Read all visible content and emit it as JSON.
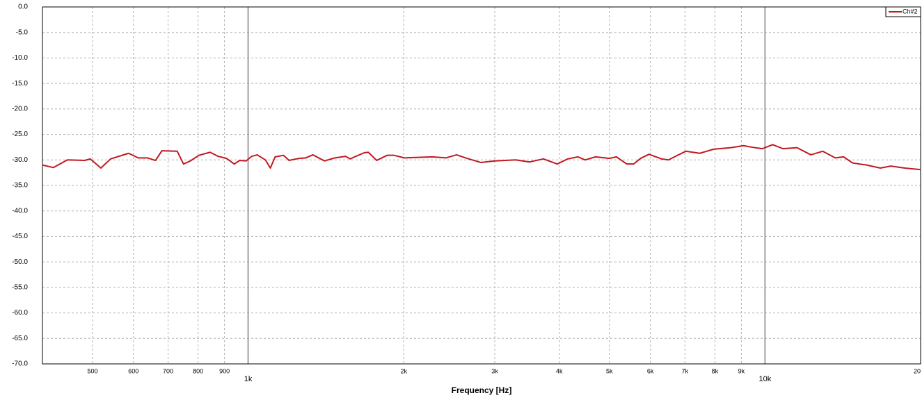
{
  "chart_data": {
    "type": "line",
    "xlabel": "Frequency [Hz]",
    "log_x": true,
    "grid": true,
    "legend": "upper right",
    "xlim": [
      400,
      20000
    ],
    "ylim": [
      -70,
      0
    ],
    "xticks": [
      500,
      600,
      700,
      800,
      900,
      {
        "value": 1000,
        "label": "1k"
      },
      {
        "value": 2000,
        "label": "2k"
      },
      {
        "value": 3000,
        "label": "3k"
      },
      {
        "value": 4000,
        "label": "4k"
      },
      {
        "value": 5000,
        "label": "5k"
      },
      {
        "value": 6000,
        "label": "6k"
      },
      {
        "value": 7000,
        "label": "7k"
      },
      {
        "value": 8000,
        "label": "8k"
      },
      {
        "value": 9000,
        "label": "9k"
      },
      {
        "value": 10000,
        "label": "10k"
      },
      {
        "value": 20000,
        "label": "20"
      }
    ],
    "major_xticks": [
      1000,
      10000
    ],
    "yticks": [
      {
        "value": 0,
        "label": "0.0"
      },
      {
        "value": -5,
        "label": "-5.0"
      },
      {
        "value": -10,
        "label": "-10.0"
      },
      {
        "value": -15,
        "label": "-15.0"
      },
      {
        "value": -20,
        "label": "-20.0"
      },
      {
        "value": -25,
        "label": "-25.0"
      },
      {
        "value": -30,
        "label": "-30.0"
      },
      {
        "value": -35,
        "label": "-35.0"
      },
      {
        "value": -40,
        "label": "-40.0"
      },
      {
        "value": -45,
        "label": "-45.0"
      },
      {
        "value": -50,
        "label": "-50.0"
      },
      {
        "value": -55,
        "label": "-55.0"
      },
      {
        "value": -60,
        "label": "-60.0"
      },
      {
        "value": -65,
        "label": "-65.0"
      },
      {
        "value": -70,
        "label": "-70.0"
      }
    ],
    "x": [
      400,
      420,
      447,
      483,
      495,
      519,
      542,
      587,
      613,
      638,
      662,
      681,
      729,
      750,
      773,
      803,
      844,
      875,
      908,
      940,
      963,
      991,
      1016,
      1041,
      1080,
      1104,
      1128,
      1171,
      1200,
      1254,
      1293,
      1334,
      1405,
      1472,
      1543,
      1576,
      1615,
      1677,
      1708,
      1773,
      1857,
      1916,
      2006,
      2271,
      2416,
      2531,
      2651,
      2820,
      3000,
      3293,
      3503,
      3726,
      3964,
      4153,
      4349,
      4486,
      4699,
      5000,
      5158,
      5402,
      5572,
      5745,
      5964,
      6306,
      6506,
      6710,
      7029,
      7476,
      7953,
      8594,
      9085,
      9430,
      9877,
      10346,
      10837,
      11530,
      12266,
      12930,
      13672,
      14190,
      14772,
      15714,
      16717,
      17515,
      18633,
      20000
    ],
    "series": [
      {
        "name": "Ch#2",
        "color": "#c0191f",
        "values": [
          -31.0,
          -31.5,
          -30.0,
          -30.1,
          -29.8,
          -31.6,
          -29.8,
          -28.7,
          -29.6,
          -29.6,
          -30.1,
          -28.2,
          -28.3,
          -30.8,
          -30.2,
          -29.1,
          -28.5,
          -29.3,
          -29.7,
          -30.8,
          -30.1,
          -30.2,
          -29.3,
          -29.0,
          -30.0,
          -31.6,
          -29.4,
          -29.1,
          -30.1,
          -29.7,
          -29.6,
          -29.0,
          -30.2,
          -29.6,
          -29.3,
          -29.8,
          -29.3,
          -28.6,
          -28.5,
          -30.1,
          -29.1,
          -29.1,
          -29.6,
          -29.4,
          -29.6,
          -29.0,
          -29.7,
          -30.5,
          -30.2,
          -30.0,
          -30.4,
          -29.8,
          -30.8,
          -29.8,
          -29.4,
          -30.0,
          -29.4,
          -29.7,
          -29.4,
          -30.8,
          -30.8,
          -29.7,
          -28.9,
          -29.8,
          -30.0,
          -29.3,
          -28.3,
          -28.7,
          -27.9,
          -27.6,
          -27.2,
          -27.5,
          -27.8,
          -27.0,
          -27.8,
          -27.6,
          -29.0,
          -28.3,
          -29.6,
          -29.4,
          -30.6,
          -31.0,
          -31.6,
          -31.2,
          -31.6,
          -31.9
        ]
      }
    ]
  }
}
